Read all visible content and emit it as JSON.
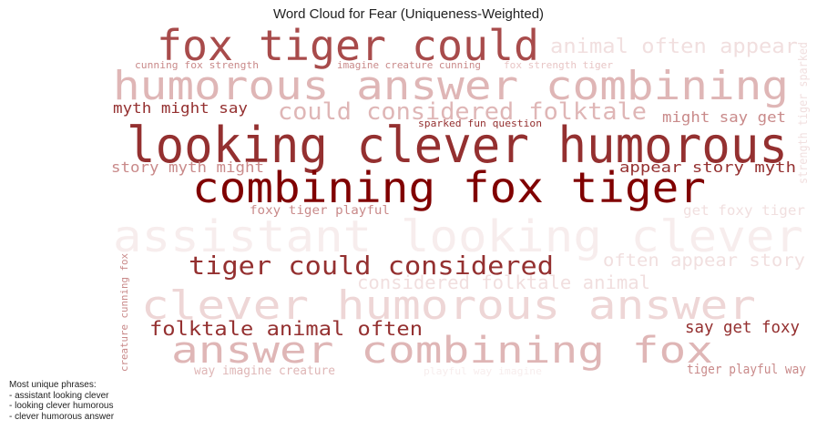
{
  "chart_data": {
    "type": "wordcloud",
    "title": "Word Cloud for Fear (Uniqueness-Weighted)",
    "colors": {
      "darkest": "#800000",
      "dark": "#943030",
      "medium": "#a84b4b",
      "light": "#c98a8a",
      "pale": "#dfb6b6",
      "faint": "#f1dfdf",
      "faintest": "#f7eded"
    },
    "phrases": [
      {
        "text": "fox tiger could",
        "color": "#a84b4b"
      },
      {
        "text": "animal often appear",
        "color": "#f1dfdf"
      },
      {
        "text": "cunning fox strength",
        "color": "#c98a8a"
      },
      {
        "text": "imagine creature cunning",
        "color": "#c98a8a"
      },
      {
        "text": "fox strength tiger",
        "color": "#e8c6c6"
      },
      {
        "text": "humorous answer combining",
        "color": "#dfb6b6"
      },
      {
        "text": "strength tiger sparked",
        "color": "#f1dfdf"
      },
      {
        "text": "myth might say",
        "color": "#943030"
      },
      {
        "text": "could considered folktale",
        "color": "#dfb6b6"
      },
      {
        "text": "might say get",
        "color": "#c98a8a"
      },
      {
        "text": "sparked fun question",
        "color": "#943030"
      },
      {
        "text": "looking clever humorous",
        "color": "#943030"
      },
      {
        "text": "story myth might",
        "color": "#c98a8a"
      },
      {
        "text": "appear story myth",
        "color": "#943030"
      },
      {
        "text": "combining fox tiger",
        "color": "#800000"
      },
      {
        "text": "foxy tiger playful",
        "color": "#c98a8a"
      },
      {
        "text": "get foxy tiger",
        "color": "#f1dfdf"
      },
      {
        "text": "assistant looking clever",
        "color": "#f7eded"
      },
      {
        "text": "tiger could considered",
        "color": "#943030"
      },
      {
        "text": "often appear story",
        "color": "#f1dfdf"
      },
      {
        "text": "considered folktale animal",
        "color": "#f1dfdf"
      },
      {
        "text": "creature cunning fox",
        "color": "#c98a8a"
      },
      {
        "text": "clever humorous answer",
        "color": "#eed6d6"
      },
      {
        "text": "folktale animal often",
        "color": "#943030"
      },
      {
        "text": "say get foxy",
        "color": "#943030"
      },
      {
        "text": "answer combining fox",
        "color": "#dfb6b6"
      },
      {
        "text": "way imagine creature",
        "color": "#dfb6b6"
      },
      {
        "text": "playful way imagine",
        "color": "#f7eded"
      },
      {
        "text": "tiger playful way",
        "color": "#c98a8a"
      }
    ],
    "note": {
      "heading": "Most unique phrases:",
      "items": [
        "- assistant looking clever",
        "- looking clever humorous",
        "- clever humorous answer"
      ]
    }
  }
}
